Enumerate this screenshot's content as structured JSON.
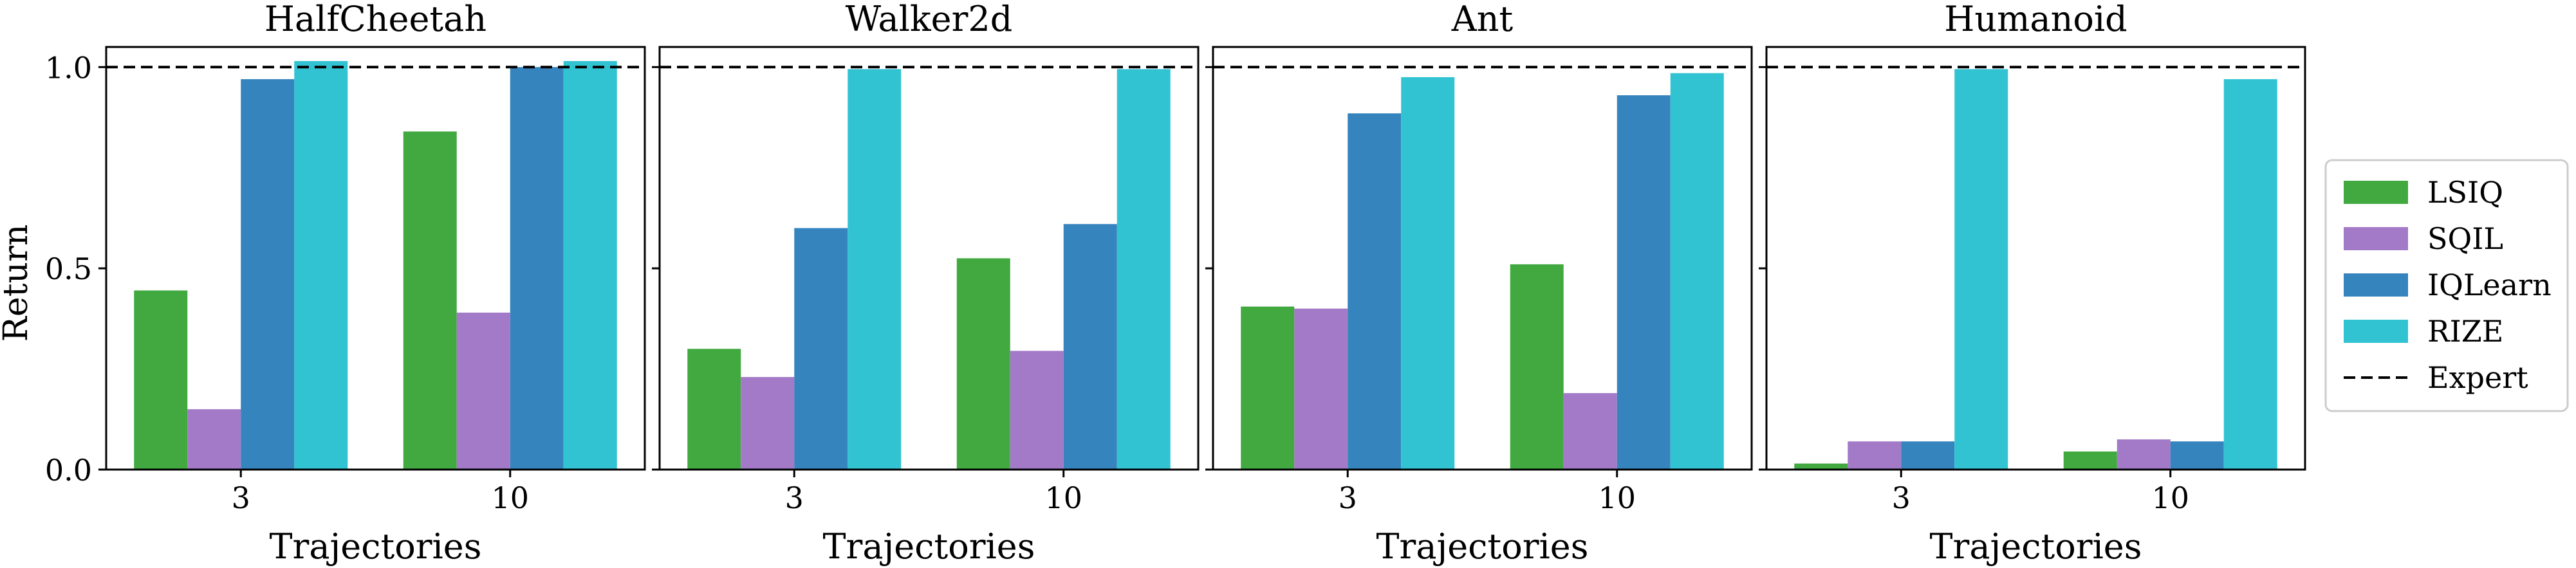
{
  "figure": {
    "ylabel": "Return",
    "xlabel": "Trajectories",
    "expert_label": "Expert",
    "colors": {
      "LSIQ": "#41a940",
      "SQIL": "#a37ac7",
      "IQLearn": "#3584bd",
      "RIZE": "#32c3d2",
      "Expert": "#000000"
    },
    "legend": [
      "LSIQ",
      "SQIL",
      "IQLearn",
      "RIZE",
      "Expert"
    ]
  },
  "chart_data": [
    {
      "type": "bar",
      "title": "HalfCheetah",
      "xlabel": "Trajectories",
      "ylabel": "Return",
      "categories": [
        "3",
        "10"
      ],
      "ylim": [
        0,
        1.05
      ],
      "yticks": [
        "0.0",
        "0.5",
        "1.0"
      ],
      "reference_line": {
        "name": "Expert",
        "value": 1.0,
        "style": "dashed"
      },
      "series": [
        {
          "name": "LSIQ",
          "values": [
            0.445,
            0.84
          ]
        },
        {
          "name": "SQIL",
          "values": [
            0.15,
            0.39
          ]
        },
        {
          "name": "IQLearn",
          "values": [
            0.97,
            1.0
          ]
        },
        {
          "name": "RIZE",
          "values": [
            1.015,
            1.015
          ]
        }
      ],
      "grid": false
    },
    {
      "type": "bar",
      "title": "Walker2d",
      "xlabel": "Trajectories",
      "ylabel": "",
      "categories": [
        "3",
        "10"
      ],
      "ylim": [
        0,
        1.05
      ],
      "yticks": [
        "0.0",
        "0.5",
        "1.0"
      ],
      "reference_line": {
        "name": "Expert",
        "value": 1.0,
        "style": "dashed"
      },
      "series": [
        {
          "name": "LSIQ",
          "values": [
            0.3,
            0.525
          ]
        },
        {
          "name": "SQIL",
          "values": [
            0.23,
            0.295
          ]
        },
        {
          "name": "IQLearn",
          "values": [
            0.6,
            0.61
          ]
        },
        {
          "name": "RIZE",
          "values": [
            0.995,
            0.995
          ]
        }
      ],
      "grid": false
    },
    {
      "type": "bar",
      "title": "Ant",
      "xlabel": "Trajectories",
      "ylabel": "",
      "categories": [
        "3",
        "10"
      ],
      "ylim": [
        0,
        1.05
      ],
      "yticks": [
        "0.0",
        "0.5",
        "1.0"
      ],
      "reference_line": {
        "name": "Expert",
        "value": 1.0,
        "style": "dashed"
      },
      "series": [
        {
          "name": "LSIQ",
          "values": [
            0.405,
            0.51
          ]
        },
        {
          "name": "SQIL",
          "values": [
            0.4,
            0.19
          ]
        },
        {
          "name": "IQLearn",
          "values": [
            0.885,
            0.93
          ]
        },
        {
          "name": "RIZE",
          "values": [
            0.975,
            0.985
          ]
        }
      ],
      "grid": false
    },
    {
      "type": "bar",
      "title": "Humanoid",
      "xlabel": "Trajectories",
      "ylabel": "",
      "categories": [
        "3",
        "10"
      ],
      "ylim": [
        0,
        1.05
      ],
      "yticks": [
        "0.0",
        "0.5",
        "1.0"
      ],
      "reference_line": {
        "name": "Expert",
        "value": 1.0,
        "style": "dashed"
      },
      "series": [
        {
          "name": "LSIQ",
          "values": [
            0.015,
            0.045
          ]
        },
        {
          "name": "SQIL",
          "values": [
            0.07,
            0.075
          ]
        },
        {
          "name": "IQLearn",
          "values": [
            0.07,
            0.07
          ]
        },
        {
          "name": "RIZE",
          "values": [
            0.995,
            0.97
          ]
        }
      ],
      "grid": false
    }
  ]
}
